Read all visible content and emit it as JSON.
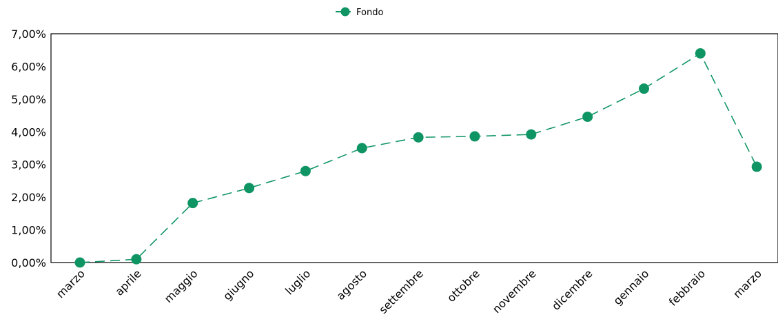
{
  "chart_data": {
    "type": "line",
    "categories": [
      "marzo",
      "aprile",
      "maggio",
      "giugno",
      "luglio",
      "agosto",
      "settembre",
      "ottobre",
      "novembre",
      "dicembre",
      "gennaio",
      "febbraio",
      "marzo"
    ],
    "series": [
      {
        "name": "Fondo",
        "color": "#0f9564",
        "line_style": "dashed",
        "marker": "circle",
        "values": [
          0.0,
          0.1,
          1.82,
          2.28,
          2.8,
          3.5,
          3.83,
          3.86,
          3.92,
          4.46,
          5.32,
          6.4,
          2.93
        ]
      }
    ],
    "y_tick_labels": [
      "0,00%",
      "1,00%",
      "2,00%",
      "3,00%",
      "4,00%",
      "5,00%",
      "6,00%",
      "7,00%"
    ],
    "ylim": [
      0,
      7
    ],
    "legend_position": "top-center",
    "grid": false,
    "title": "",
    "xlabel": "",
    "ylabel": ""
  }
}
